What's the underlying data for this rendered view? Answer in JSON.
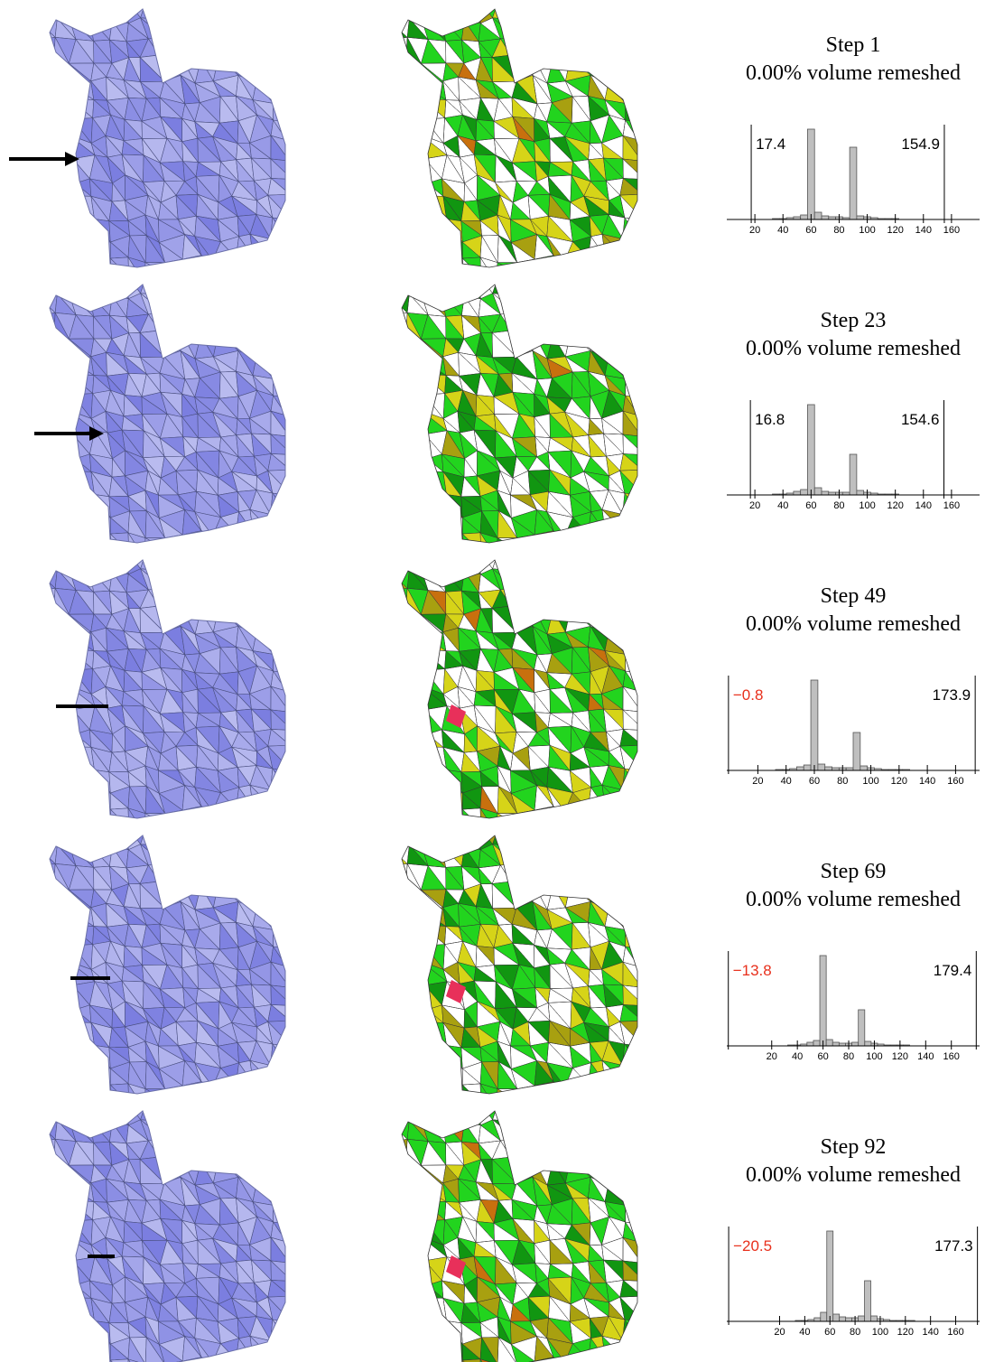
{
  "rows": [
    {
      "step": "Step 1",
      "remeshed": "0.00% volume remeshed",
      "chart_data": {
        "type": "histogram",
        "color": "#bfbfbf",
        "bins": [
          17.5,
          22.5,
          27.5,
          32.5,
          37.5,
          42.5,
          47.5,
          52.5,
          57.5,
          62.5,
          67.5,
          72.5,
          77.5,
          82.5,
          87.5,
          92.5,
          97.5,
          102.5,
          107.5,
          112.5,
          117.5,
          122.5,
          127.5,
          132.5,
          137.5,
          142.5,
          147.5,
          152.5,
          157.5,
          162.5,
          167.5,
          172.5,
          177.5
        ],
        "counts": [
          0,
          0,
          0,
          1,
          1,
          2,
          3,
          5,
          100,
          8,
          4,
          3,
          3,
          2,
          80,
          4,
          3,
          2,
          1,
          1,
          1,
          0,
          0,
          0,
          0,
          0,
          0,
          0,
          0,
          0,
          0,
          0
        ],
        "xlim": [
          0,
          180
        ],
        "ylim": [
          0,
          100
        ],
        "xticks": [
          20,
          40,
          60,
          80,
          100,
          120,
          140,
          160
        ],
        "min": 17.4,
        "max": 154.9
      }
    },
    {
      "step": "Step 23",
      "remeshed": "0.00% volume remeshed",
      "chart_data": {
        "type": "histogram",
        "color": "#bfbfbf",
        "bins": [
          17.5,
          22.5,
          27.5,
          32.5,
          37.5,
          42.5,
          47.5,
          52.5,
          57.5,
          62.5,
          67.5,
          72.5,
          77.5,
          82.5,
          87.5,
          92.5,
          97.5,
          102.5,
          107.5,
          112.5,
          117.5,
          122.5,
          127.5,
          132.5,
          137.5,
          142.5,
          147.5,
          152.5,
          157.5,
          162.5,
          167.5,
          172.5,
          177.5
        ],
        "counts": [
          0,
          0,
          0,
          1,
          1,
          2,
          4,
          6,
          100,
          8,
          4,
          3,
          3,
          3,
          45,
          5,
          3,
          2,
          1,
          1,
          1,
          0,
          0,
          0,
          0,
          0,
          0,
          0,
          0,
          0,
          0,
          0
        ],
        "xlim": [
          0,
          180
        ],
        "ylim": [
          0,
          100
        ],
        "xticks": [
          20,
          40,
          60,
          80,
          100,
          120,
          140,
          160
        ],
        "min": 16.8,
        "max": 154.6
      }
    },
    {
      "step": "Step 49",
      "remeshed": "0.00% volume remeshed",
      "chart_data": {
        "type": "histogram",
        "color": "#bfbfbf",
        "bins": [
          17.5,
          22.5,
          27.5,
          32.5,
          37.5,
          42.5,
          47.5,
          52.5,
          57.5,
          62.5,
          67.5,
          72.5,
          77.5,
          82.5,
          87.5,
          92.5,
          97.5,
          102.5,
          107.5,
          112.5,
          117.5,
          122.5,
          127.5,
          132.5,
          137.5,
          142.5,
          147.5,
          152.5,
          157.5,
          162.5,
          167.5,
          172.5,
          177.5
        ],
        "counts": [
          0,
          0,
          0,
          1,
          1,
          2,
          4,
          6,
          100,
          7,
          4,
          3,
          3,
          3,
          42,
          5,
          3,
          2,
          1,
          1,
          1,
          1,
          0,
          0,
          0,
          0,
          0,
          0,
          0,
          0,
          0,
          0
        ],
        "xlim": [
          -2,
          177
        ],
        "ylim": [
          0,
          100
        ],
        "xticks": [
          20,
          40,
          60,
          80,
          100,
          120,
          140,
          160
        ],
        "min": {
          "value": -0.8,
          "label": "−0.8"
        },
        "max": 173.9
      }
    },
    {
      "step": "Step 69",
      "remeshed": "0.00% volume remeshed",
      "chart_data": {
        "type": "histogram",
        "color": "#bfbfbf",
        "bins": [
          17.5,
          22.5,
          27.5,
          32.5,
          37.5,
          42.5,
          47.5,
          52.5,
          57.5,
          62.5,
          67.5,
          72.5,
          77.5,
          82.5,
          87.5,
          92.5,
          97.5,
          102.5,
          107.5,
          112.5,
          117.5,
          122.5,
          127.5,
          132.5,
          137.5,
          142.5,
          147.5,
          152.5,
          157.5,
          162.5,
          167.5,
          172.5,
          177.5
        ],
        "counts": [
          0,
          0,
          0,
          1,
          1,
          2,
          4,
          6,
          100,
          7,
          4,
          3,
          3,
          4,
          40,
          5,
          3,
          2,
          1,
          1,
          1,
          1,
          0,
          0,
          0,
          0,
          0,
          0,
          0,
          0,
          0,
          0
        ],
        "xlim": [
          -15,
          182
        ],
        "ylim": [
          0,
          100
        ],
        "xticks": [
          20,
          40,
          60,
          80,
          100,
          120,
          140,
          160
        ],
        "min": {
          "value": -13.8,
          "label": "−13.8"
        },
        "max": 179.4
      }
    },
    {
      "step": "Step 92",
      "remeshed": "0.00% volume remeshed",
      "chart_data": {
        "type": "histogram",
        "color": "#bfbfbf",
        "bins": [
          17.5,
          22.5,
          27.5,
          32.5,
          37.5,
          42.5,
          47.5,
          52.5,
          57.5,
          62.5,
          67.5,
          72.5,
          77.5,
          82.5,
          87.5,
          92.5,
          97.5,
          102.5,
          107.5,
          112.5,
          117.5,
          122.5,
          127.5,
          132.5,
          137.5,
          142.5,
          147.5,
          152.5,
          157.5,
          162.5,
          167.5,
          172.5,
          177.5
        ],
        "counts": [
          0,
          0,
          0,
          1,
          1,
          2,
          4,
          10,
          100,
          8,
          5,
          4,
          4,
          6,
          45,
          6,
          3,
          2,
          1,
          1,
          1,
          1,
          0,
          0,
          0,
          0,
          0,
          0,
          0,
          0,
          0,
          0
        ],
        "xlim": [
          -22,
          179
        ],
        "ylim": [
          0,
          100
        ],
        "xticks": [
          20,
          40,
          60,
          80,
          100,
          120,
          140,
          160
        ],
        "min": {
          "value": -20.5,
          "label": "−20.5"
        },
        "max": 177.3
      }
    }
  ]
}
